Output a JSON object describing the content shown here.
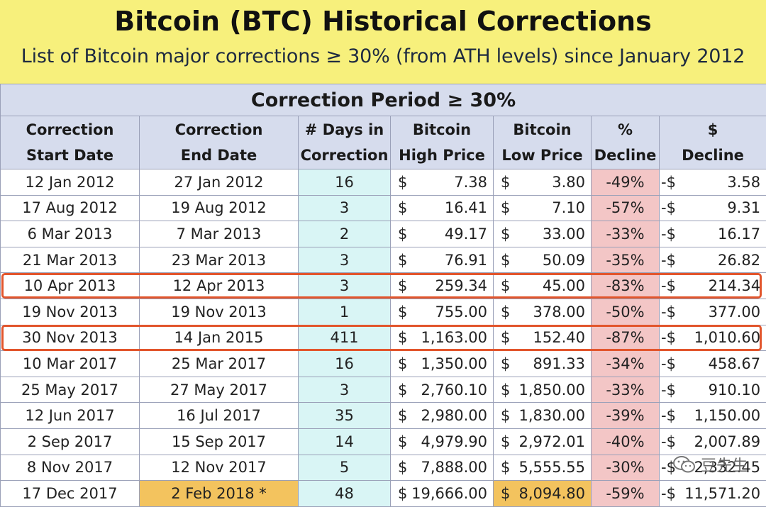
{
  "header": {
    "title": "Bitcoin (BTC) Historical Corrections",
    "subtitle": "List of Bitcoin major corrections ≥ 30% (from ATH levels) since January 2012"
  },
  "table": {
    "period_heading": "Correction Period ≥ 30%",
    "columns": [
      {
        "line1": "Correction",
        "line2": "Start Date"
      },
      {
        "line1": "Correction",
        "line2": "End Date"
      },
      {
        "line1": "# Days in",
        "line2": "Correction"
      },
      {
        "line1": "Bitcoin",
        "line2": "High Price"
      },
      {
        "line1": "Bitcoin",
        "line2": "Low Price"
      },
      {
        "line1": "%",
        "line2": "Decline"
      },
      {
        "line1": "$",
        "line2": "Decline"
      }
    ],
    "currency_symbol": "$",
    "decline_prefix": "-$",
    "rows": [
      {
        "start": "12 Jan 2012",
        "end": "27 Jan 2012",
        "days": "16",
        "high": "7.38",
        "low": "3.80",
        "pct": "-49%",
        "usd": "3.58"
      },
      {
        "start": "17 Aug 2012",
        "end": "19 Aug 2012",
        "days": "3",
        "high": "16.41",
        "low": "7.10",
        "pct": "-57%",
        "usd": "9.31"
      },
      {
        "start": "6 Mar 2013",
        "end": "7 Mar 2013",
        "days": "2",
        "high": "49.17",
        "low": "33.00",
        "pct": "-33%",
        "usd": "16.17"
      },
      {
        "start": "21 Mar 2013",
        "end": "23 Mar 2013",
        "days": "3",
        "high": "76.91",
        "low": "50.09",
        "pct": "-35%",
        "usd": "26.82"
      },
      {
        "start": "10 Apr 2013",
        "end": "12 Apr 2013",
        "days": "3",
        "high": "259.34",
        "low": "45.00",
        "pct": "-83%",
        "usd": "214.34"
      },
      {
        "start": "19 Nov 2013",
        "end": "19 Nov 2013",
        "days": "1",
        "high": "755.00",
        "low": "378.00",
        "pct": "-50%",
        "usd": "377.00"
      },
      {
        "start": "30 Nov 2013",
        "end": "14 Jan 2015",
        "days": "411",
        "high": "1,163.00",
        "low": "152.40",
        "pct": "-87%",
        "usd": "1,010.60"
      },
      {
        "start": "10 Mar 2017",
        "end": "25 Mar 2017",
        "days": "16",
        "high": "1,350.00",
        "low": "891.33",
        "pct": "-34%",
        "usd": "458.67"
      },
      {
        "start": "25 May 2017",
        "end": "27 May 2017",
        "days": "3",
        "high": "2,760.10",
        "low": "1,850.00",
        "pct": "-33%",
        "usd": "910.10"
      },
      {
        "start": "12 Jun 2017",
        "end": "16 Jul 2017",
        "days": "35",
        "high": "2,980.00",
        "low": "1,830.00",
        "pct": "-39%",
        "usd": "1,150.00"
      },
      {
        "start": "2 Sep 2017",
        "end": "15 Sep 2017",
        "days": "14",
        "high": "4,979.90",
        "low": "2,972.01",
        "pct": "-40%",
        "usd": "2,007.89"
      },
      {
        "start": "8 Nov 2017",
        "end": "12 Nov 2017",
        "days": "5",
        "high": "7,888.00",
        "low": "5,555.55",
        "pct": "-30%",
        "usd": "2,332.45"
      },
      {
        "start": "17 Dec 2017",
        "end": "2 Feb 2018 *",
        "days": "48",
        "high": "19,666.00",
        "low": "8,094.80",
        "pct": "-59%",
        "usd": "11,571.20"
      }
    ],
    "highlight_rows": [
      4,
      6
    ],
    "highlight_color": "#e2552c",
    "ongoing_row_color": "#f3c35e"
  },
  "watermark": {
    "text": "豆先生",
    "icon": "wechat-icon"
  }
}
